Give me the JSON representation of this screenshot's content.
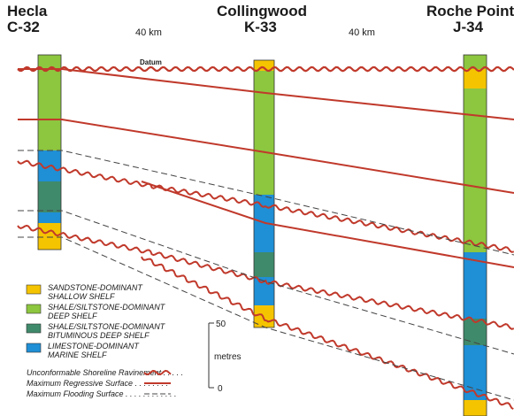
{
  "wells": [
    {
      "name": "Hecla",
      "id": "C-32"
    },
    {
      "name": "Collingwood",
      "id": "K-33"
    },
    {
      "name": "Roche Point",
      "id": "J-34"
    }
  ],
  "distances": [
    "40 km",
    "40 km"
  ],
  "datum_label": "Datum",
  "scale": {
    "top": "50",
    "unit": "metres",
    "bottom": "0"
  },
  "facies_legend": [
    {
      "line1": "SANDSTONE-DOMINANT",
      "line2": "SHALLOW SHELF",
      "color": "#f5c400"
    },
    {
      "line1": "SHALE/SILTSTONE-DOMINANT",
      "line2": "DEEP SHELF",
      "color": "#8dc63f"
    },
    {
      "line1": "SHALE/SILTSTONE-DOMINANT",
      "line2": "BITUMINOUS DEEP SHELF",
      "color": "#3f8a6b"
    },
    {
      "line1": "LIMESTONE-DOMINANT",
      "line2": "MARINE SHELF",
      "color": "#1f8fd6"
    }
  ],
  "surface_legend": [
    {
      "label": "Unconformable Shoreline Ravinement . . . . .",
      "style": "wavy"
    },
    {
      "label": "Maximum Regressive Surface . . . . . . . .",
      "style": "solid"
    },
    {
      "label": "Maximum Flooding Surface . . . . . . . . . . . .",
      "style": "dashed"
    }
  ],
  "colors": {
    "surface_red": "#c0392b",
    "dashed": "#444444"
  }
}
